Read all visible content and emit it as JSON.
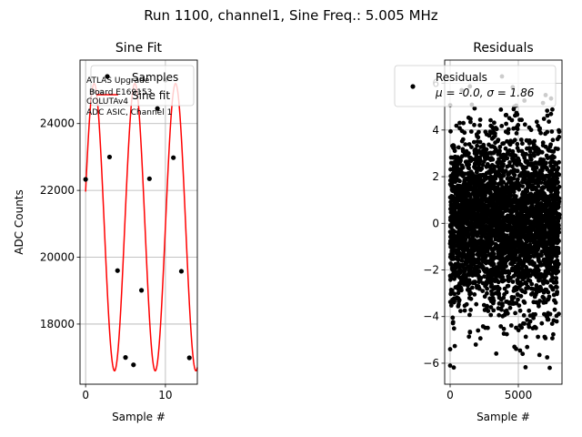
{
  "figure_title": "Run 1100, channel1, Sine Freq.: 5.005 MHz",
  "chart_data": [
    {
      "type": "line",
      "title": "Sine Fit",
      "xlabel": "Sample #",
      "ylabel": "ADC Counts",
      "xlim": [
        -0.7,
        14.0
      ],
      "ylim": [
        16200,
        25900
      ],
      "xticks": [
        0,
        10
      ],
      "xtick_labels": [
        "0",
        "10"
      ],
      "yticks": [
        18000,
        20000,
        22000,
        24000
      ],
      "ytick_labels": [
        "18000",
        "20000",
        "22000",
        "24000"
      ],
      "grid": true,
      "legend_position": "top-right",
      "legend_entries": [
        "Samples",
        "Sine fit"
      ],
      "annotation_lines": [
        "ATLAS Upgrade",
        "Board E169153",
        "COLUTAv4",
        "ADC ASIC, Channel 1"
      ],
      "series": [
        {
          "name": "Samples",
          "kind": "scatter",
          "color": "#000000",
          "x": [
            0,
            1,
            2,
            3,
            4,
            5,
            6,
            7,
            8,
            9,
            10,
            11,
            12,
            13
          ],
          "y": [
            22330,
            24960,
            24950,
            23000,
            19600,
            17000,
            16780,
            19010,
            22350,
            24450,
            25300,
            22980,
            19580,
            16990
          ]
        },
        {
          "name": "Sine fit",
          "kind": "line",
          "color": "#ff0000",
          "function": {
            "mean": 20900,
            "amplitude": 4300,
            "period": 5.1,
            "phase_rad": 0.25
          },
          "x_range": [
            0,
            14
          ],
          "points": 300
        }
      ]
    },
    {
      "type": "scatter",
      "title": "Residuals",
      "xlabel": "Sample #",
      "ylabel": "",
      "xlim": [
        -400,
        8200
      ],
      "ylim": [
        -6.9,
        7.0
      ],
      "xticks": [
        0,
        5000
      ],
      "xtick_labels": [
        "0",
        "5000"
      ],
      "yticks": [
        -6,
        -4,
        -2,
        0,
        2,
        4,
        6
      ],
      "ytick_labels": [
        "−6",
        "−4",
        "−2",
        "0",
        "2",
        "4",
        "6"
      ],
      "grid": true,
      "legend_position": "top-right",
      "legend_entries": [
        "Residuals",
        "μ = -0.0, σ = 1.86"
      ],
      "series": [
        {
          "name": "Residuals",
          "color": "#000000",
          "distribution": {
            "count": 8192,
            "mean": -0.0,
            "sigma": 1.86,
            "x_range": [
              0,
              8000
            ],
            "ylim": [
              -6.2,
              6.3
            ]
          },
          "highlight_points": [
            {
              "x": 0,
              "y": -6.1
            },
            {
              "x": 0,
              "y": -5.4
            },
            {
              "x": 3800,
              "y": 6.3
            },
            {
              "x": 7300,
              "y": -6.2
            },
            {
              "x": 7000,
              "y": 5.5
            },
            {
              "x": 4700,
              "y": 5.0
            }
          ]
        }
      ]
    }
  ]
}
